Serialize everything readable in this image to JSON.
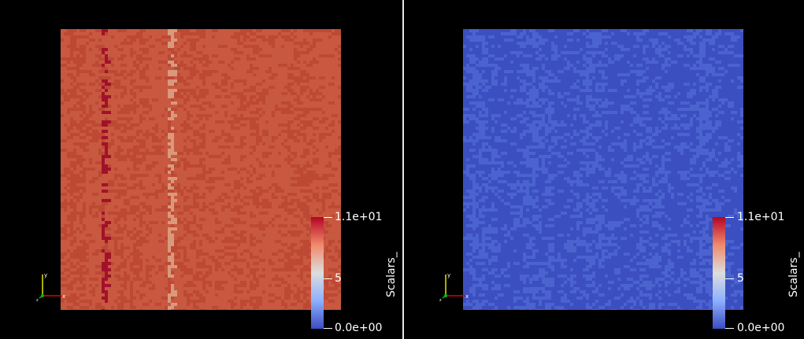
{
  "views": [
    {
      "id": "left",
      "field_variant": "warm",
      "scalar_bar": {
        "title": "Scalars_",
        "max_label": "1.1e+01",
        "mid_label": "5",
        "min_label": "0.0e+00"
      },
      "axes": {
        "x_label": "x",
        "y_label": "y",
        "z_label": "z"
      }
    },
    {
      "id": "right",
      "field_variant": "cool",
      "scalar_bar": {
        "title": "Scalars_",
        "max_label": "1.1e+01",
        "mid_label": "5",
        "min_label": "0.0e+00"
      },
      "axes": {
        "x_label": "x",
        "y_label": "y",
        "z_label": "z"
      }
    }
  ],
  "colors": {
    "background": "#000000",
    "divider": "#e8e8e8",
    "warm_base": "#c8583f",
    "warm_alt": "#bd4934",
    "warm_dark": "#a1122a",
    "warm_light": "#d9997c",
    "cool_base": "#3c4fc0",
    "cool_alt": "#4a63cf",
    "colormap_max": "#b40426",
    "colormap_mid": "#dddddd",
    "colormap_min": "#3b4cc0"
  }
}
